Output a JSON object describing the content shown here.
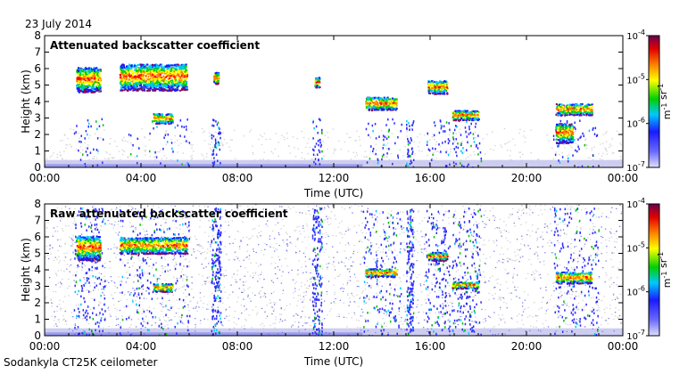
{
  "date_label": "23 July 2014",
  "footer_label": "Sodankyla CT25K ceilometer",
  "chart_data": [
    {
      "type": "heatmap",
      "title": "Attenuated backscatter coefficient",
      "xlabel": "Time (UTC)",
      "ylabel": "Height (km)",
      "xlim": [
        0,
        24
      ],
      "ylim": [
        0,
        8
      ],
      "x_ticks": [
        "00:00",
        "04:00",
        "08:00",
        "12:00",
        "16:00",
        "20:00",
        "00:00"
      ],
      "y_ticks": [
        "0",
        "1",
        "2",
        "3",
        "4",
        "5",
        "6",
        "7",
        "8"
      ],
      "colorbar": {
        "scale": "log",
        "ticks": [
          "10-4",
          "10-5",
          "10-6",
          "10-7"
        ],
        "unit": "m-1 sr-1"
      },
      "cloud_layers": [
        {
          "t_start": 1.3,
          "t_end": 2.3,
          "h_base": 4.6,
          "h_top": 6.1
        },
        {
          "t_start": 3.1,
          "t_end": 5.9,
          "h_base": 4.7,
          "h_top": 6.3
        },
        {
          "t_start": 4.5,
          "t_end": 5.3,
          "h_base": 2.7,
          "h_top": 3.3
        },
        {
          "t_start": 7.0,
          "t_end": 7.2,
          "h_base": 5.1,
          "h_top": 5.8
        },
        {
          "t_start": 11.2,
          "t_end": 11.4,
          "h_base": 4.9,
          "h_top": 5.5
        },
        {
          "t_start": 13.3,
          "t_end": 14.6,
          "h_base": 3.5,
          "h_top": 4.3
        },
        {
          "t_start": 15.9,
          "t_end": 16.7,
          "h_base": 4.5,
          "h_top": 5.3
        },
        {
          "t_start": 16.9,
          "t_end": 18.0,
          "h_base": 2.9,
          "h_top": 3.5
        },
        {
          "t_start": 21.2,
          "t_end": 22.7,
          "h_base": 3.2,
          "h_top": 3.9
        },
        {
          "t_start": 21.2,
          "t_end": 21.9,
          "h_base": 1.5,
          "h_top": 2.7
        }
      ]
    },
    {
      "type": "heatmap",
      "title": "Raw attenuated backscatter coefficient",
      "xlabel": "Time (UTC)",
      "ylabel": "Height (km)",
      "xlim": [
        0,
        24
      ],
      "ylim": [
        0,
        8
      ],
      "x_ticks": [
        "00:00",
        "04:00",
        "08:00",
        "12:00",
        "16:00",
        "20:00",
        "00:00"
      ],
      "y_ticks": [
        "0",
        "1",
        "2",
        "3",
        "4",
        "5",
        "6",
        "7",
        "8"
      ],
      "colorbar": {
        "scale": "log",
        "ticks": [
          "10-4",
          "10-5",
          "10-6",
          "10-7"
        ],
        "unit": "m-1 sr-1"
      },
      "cloud_layers": [
        {
          "t_start": 1.3,
          "t_end": 2.3,
          "h_base": 4.6,
          "h_top": 6.1
        },
        {
          "t_start": 3.1,
          "t_end": 5.9,
          "h_base": 5.0,
          "h_top": 6.0
        },
        {
          "t_start": 4.5,
          "t_end": 5.3,
          "h_base": 2.7,
          "h_top": 3.2
        },
        {
          "t_start": 13.3,
          "t_end": 14.6,
          "h_base": 3.6,
          "h_top": 4.1
        },
        {
          "t_start": 15.9,
          "t_end": 16.7,
          "h_base": 4.6,
          "h_top": 5.1
        },
        {
          "t_start": 16.9,
          "t_end": 18.0,
          "h_base": 2.9,
          "h_top": 3.3
        },
        {
          "t_start": 21.2,
          "t_end": 22.7,
          "h_base": 3.2,
          "h_top": 3.9
        }
      ]
    }
  ]
}
